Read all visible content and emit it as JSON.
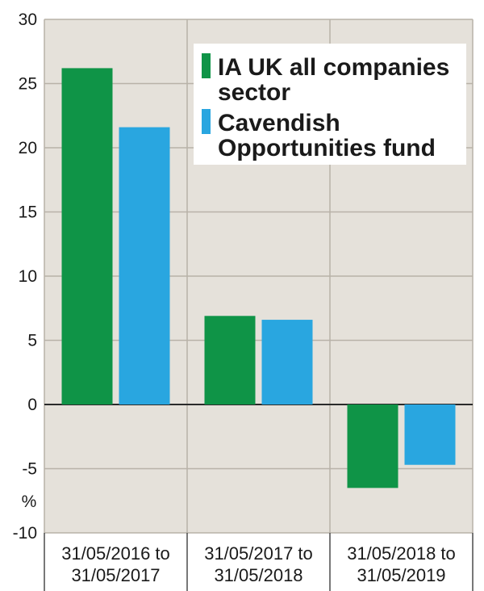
{
  "chart_data": {
    "type": "bar",
    "title": "",
    "xlabel": "",
    "ylabel": "%",
    "ylim": [
      -10,
      30
    ],
    "yticks": [
      "30",
      "25",
      "20",
      "15",
      "10",
      "5",
      "0",
      "-5",
      "-10"
    ],
    "categories": [
      [
        "31/05/2016 to",
        "31/05/2017"
      ],
      [
        "31/05/2017 to",
        "31/05/2018"
      ],
      [
        "31/05/2018 to",
        "31/05/2019"
      ]
    ],
    "series": [
      {
        "name": [
          "IA UK all companies",
          "sector"
        ],
        "color": "#0f9447",
        "values": [
          26.2,
          6.9,
          -6.5
        ]
      },
      {
        "name": [
          "Cavendish",
          "Opportunities fund"
        ],
        "color": "#29a6e0",
        "values": [
          21.6,
          6.6,
          -4.7
        ]
      }
    ],
    "legend_position": "top-right",
    "grid": true,
    "colors": {
      "plot_background": "#e5e1da",
      "grid": "#b8b2a8"
    }
  }
}
